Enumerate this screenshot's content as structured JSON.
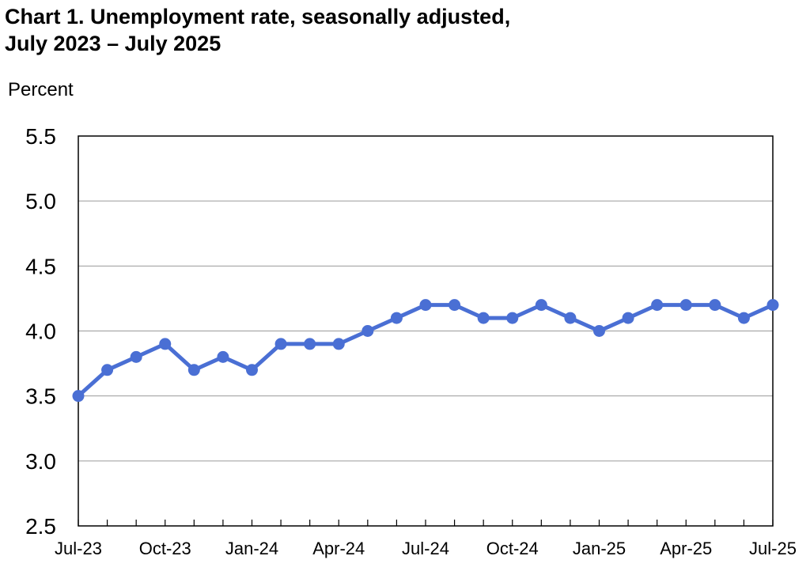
{
  "chart_data": {
    "type": "line",
    "title_line1": "Chart 1. Unemployment rate, seasonally adjusted,",
    "title_line2": "July 2023 – July 2025",
    "ylabel": "Percent",
    "xlabel": "",
    "ylim": [
      2.5,
      5.5
    ],
    "y_ticks": [
      "5.5",
      "5.0",
      "4.5",
      "4.0",
      "3.5",
      "3.0",
      "2.5"
    ],
    "x": [
      "Jul-23",
      "Aug-23",
      "Sep-23",
      "Oct-23",
      "Nov-23",
      "Dec-23",
      "Jan-24",
      "Feb-24",
      "Mar-24",
      "Apr-24",
      "May-24",
      "Jun-24",
      "Jul-24",
      "Aug-24",
      "Sep-24",
      "Oct-24",
      "Nov-24",
      "Dec-24",
      "Jan-25",
      "Feb-25",
      "Mar-25",
      "Apr-25",
      "May-25",
      "Jun-25",
      "Jul-25"
    ],
    "x_tick_labels": [
      "Jul-23",
      "Oct-23",
      "Jan-24",
      "Apr-24",
      "Jul-24",
      "Oct-24",
      "Jan-25",
      "Apr-25",
      "Jul-25"
    ],
    "series": [
      {
        "values": [
          3.5,
          3.7,
          3.8,
          3.9,
          3.7,
          3.8,
          3.7,
          3.9,
          3.9,
          3.9,
          4.0,
          4.1,
          4.2,
          4.2,
          4.1,
          4.1,
          4.2,
          4.1,
          4.0,
          4.1,
          4.2,
          4.2,
          4.2,
          4.1,
          4.2
        ]
      }
    ],
    "grid": true,
    "line_color": "#4a6fd4"
  }
}
